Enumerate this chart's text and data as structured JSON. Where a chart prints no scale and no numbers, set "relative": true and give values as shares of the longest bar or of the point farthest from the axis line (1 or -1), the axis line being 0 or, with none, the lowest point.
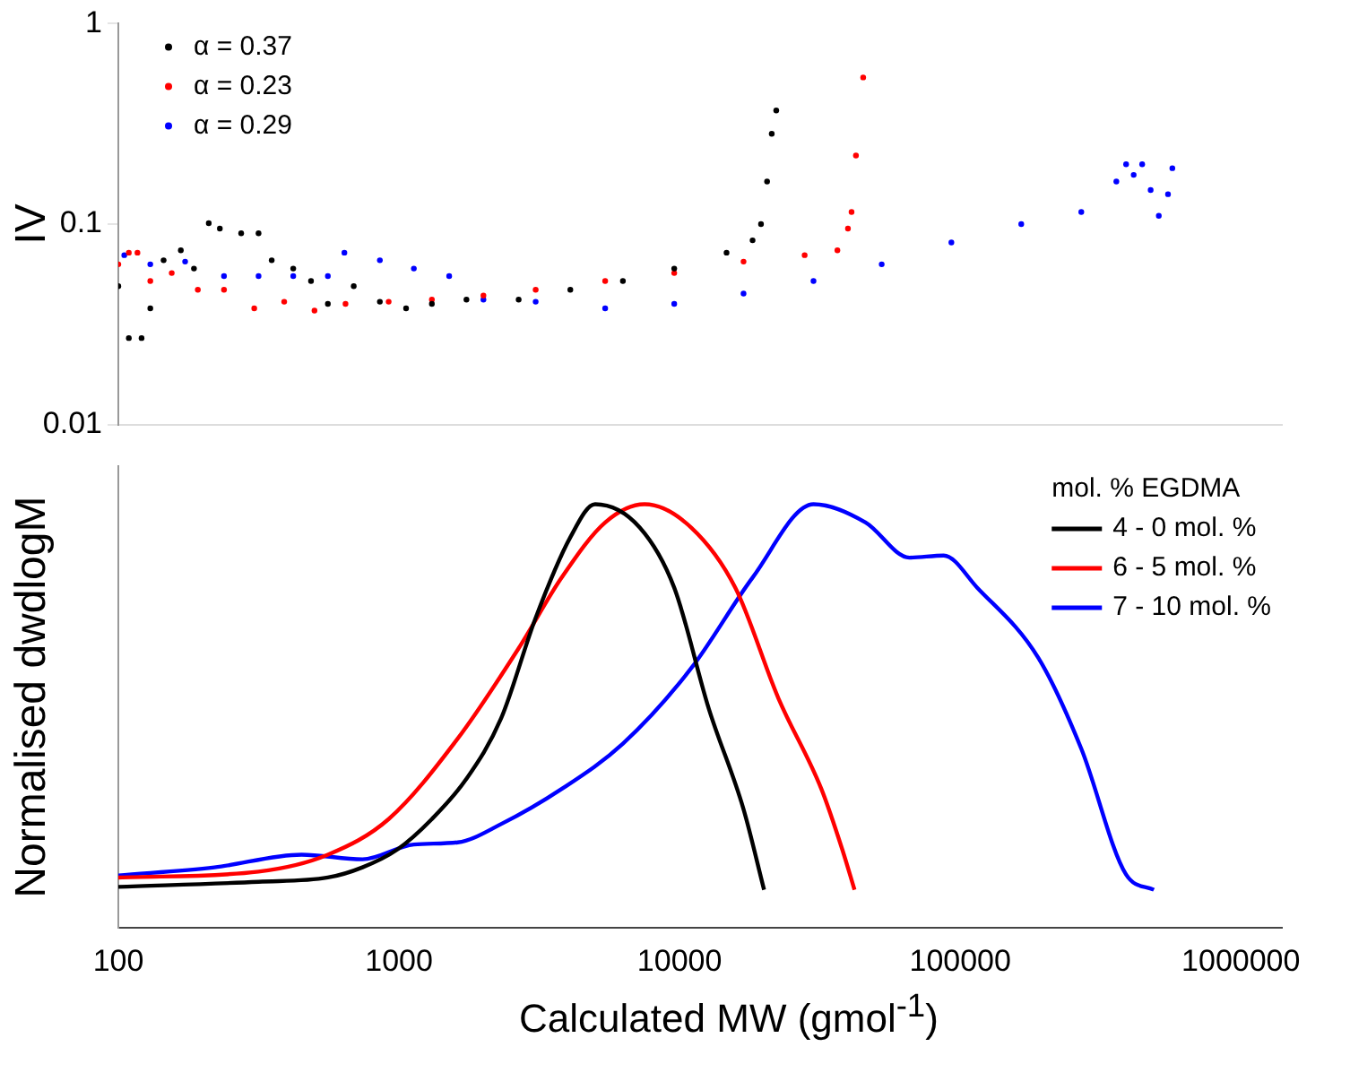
{
  "chart_data": [
    {
      "type": "scatter",
      "ylabel": "IV",
      "log": "xy",
      "xlim": [
        100,
        1400000
      ],
      "ylim": [
        0.01,
        1
      ],
      "yticks": [
        0.01,
        0.1,
        1
      ],
      "tick_labels": "y",
      "grid": false,
      "legend": "top left",
      "marker": "circle",
      "series": [
        {
          "name": "α = 0.37",
          "color": "#000000",
          "x": [
            100,
            109,
            121,
            130,
            145,
            167,
            186,
            210,
            230,
            274,
            316,
            352,
            420,
            486,
            558,
            690,
            855,
            1060,
            1310,
            1740,
            2670,
            4080,
            6280,
            9570,
            14700,
            18200,
            19500,
            20500,
            21300,
            22100
          ],
          "values": [
            0.049,
            0.027,
            0.027,
            0.038,
            0.066,
            0.074,
            0.06,
            0.101,
            0.095,
            0.09,
            0.09,
            0.066,
            0.06,
            0.052,
            0.04,
            0.049,
            0.041,
            0.038,
            0.04,
            0.042,
            0.042,
            0.047,
            0.052,
            0.06,
            0.072,
            0.083,
            0.1,
            0.163,
            0.282,
            0.369
          ]
        },
        {
          "name": "α = 0.23",
          "color": "#ff0000",
          "x": [
            100,
            109,
            117,
            130,
            155,
            192,
            238,
            305,
            390,
            500,
            645,
            919,
            1310,
            2000,
            3070,
            5430,
            9570,
            16900,
            27900,
            36500,
            39800,
            41000,
            42500,
            45100
          ],
          "values": [
            0.063,
            0.072,
            0.072,
            0.052,
            0.057,
            0.047,
            0.047,
            0.038,
            0.041,
            0.037,
            0.04,
            0.041,
            0.042,
            0.044,
            0.047,
            0.052,
            0.057,
            0.065,
            0.07,
            0.074,
            0.095,
            0.115,
            0.22,
            0.539
          ]
        },
        {
          "name": "α = 0.29",
          "color": "#0000ff",
          "x": [
            105,
            130,
            173,
            238,
            316,
            420,
            558,
            639,
            855,
            1130,
            1510,
            2000,
            3070,
            5430,
            9570,
            16900,
            30000,
            52500,
            93000,
            165000,
            270000,
            360000,
            390000,
            415000,
            445000,
            477000,
            510000,
            550000,
            570000
          ],
          "values": [
            0.07,
            0.063,
            0.065,
            0.055,
            0.055,
            0.055,
            0.055,
            0.072,
            0.066,
            0.06,
            0.055,
            0.042,
            0.041,
            0.038,
            0.04,
            0.045,
            0.052,
            0.063,
            0.081,
            0.1,
            0.115,
            0.163,
            0.199,
            0.176,
            0.199,
            0.148,
            0.11,
            0.141,
            0.19
          ]
        }
      ]
    },
    {
      "type": "line",
      "relative": true,
      "log": "x",
      "xlim": [
        100,
        1400000
      ],
      "xticks": [
        100,
        1000,
        10000,
        100000,
        1000000
      ],
      "tick_labels": "x",
      "grid": false,
      "xlabel": "Calculated MW (gmol$^{-1}$)",
      "ylabel": "Normalised dwdlogM",
      "legend_title": "mol. % EGDMA",
      "legend": "top right",
      "marker": "none",
      "line_style": "solid",
      "series": [
        {
          "name": "4 - 0 mol. %",
          "color": "#000000",
          "x": [
            100,
            316,
            558,
            741,
            986,
            1310,
            1740,
            2310,
            3070,
            4080,
            5000,
            7210,
            9570,
            12700,
            16900,
            20000
          ],
          "values": [
            0.097,
            0.109,
            0.119,
            0.143,
            0.185,
            0.257,
            0.352,
            0.494,
            0.732,
            0.922,
            1,
            0.945,
            0.803,
            0.518,
            0.28,
            0.09
          ]
        },
        {
          "name": "6 - 5 mol. %",
          "color": "#ff0000",
          "x": [
            100,
            316,
            558,
            919,
            1620,
            2670,
            3800,
            5430,
            7500,
            11000,
            15800,
            22500,
            32000,
            38000,
            42000
          ],
          "values": [
            0.119,
            0.133,
            0.173,
            0.257,
            0.447,
            0.66,
            0.827,
            0.957,
            1,
            0.945,
            0.803,
            0.542,
            0.328,
            0.185,
            0.09
          ]
        },
        {
          "name": "7 - 10 mol. %",
          "color": "#0000ff",
          "x": [
            100,
            220,
            450,
            741,
            1130,
            1620,
            2310,
            3800,
            6280,
            11000,
            18200,
            30000,
            46000,
            65900,
            87300,
            115000,
            190000,
            270000,
            390000,
            490000
          ],
          "values": [
            0.124,
            0.143,
            0.173,
            0.162,
            0.197,
            0.202,
            0.245,
            0.328,
            0.435,
            0.613,
            0.827,
            1,
            0.957,
            0.874,
            0.879,
            0.803,
            0.637,
            0.423,
            0.126,
            0.09
          ]
        }
      ]
    }
  ]
}
